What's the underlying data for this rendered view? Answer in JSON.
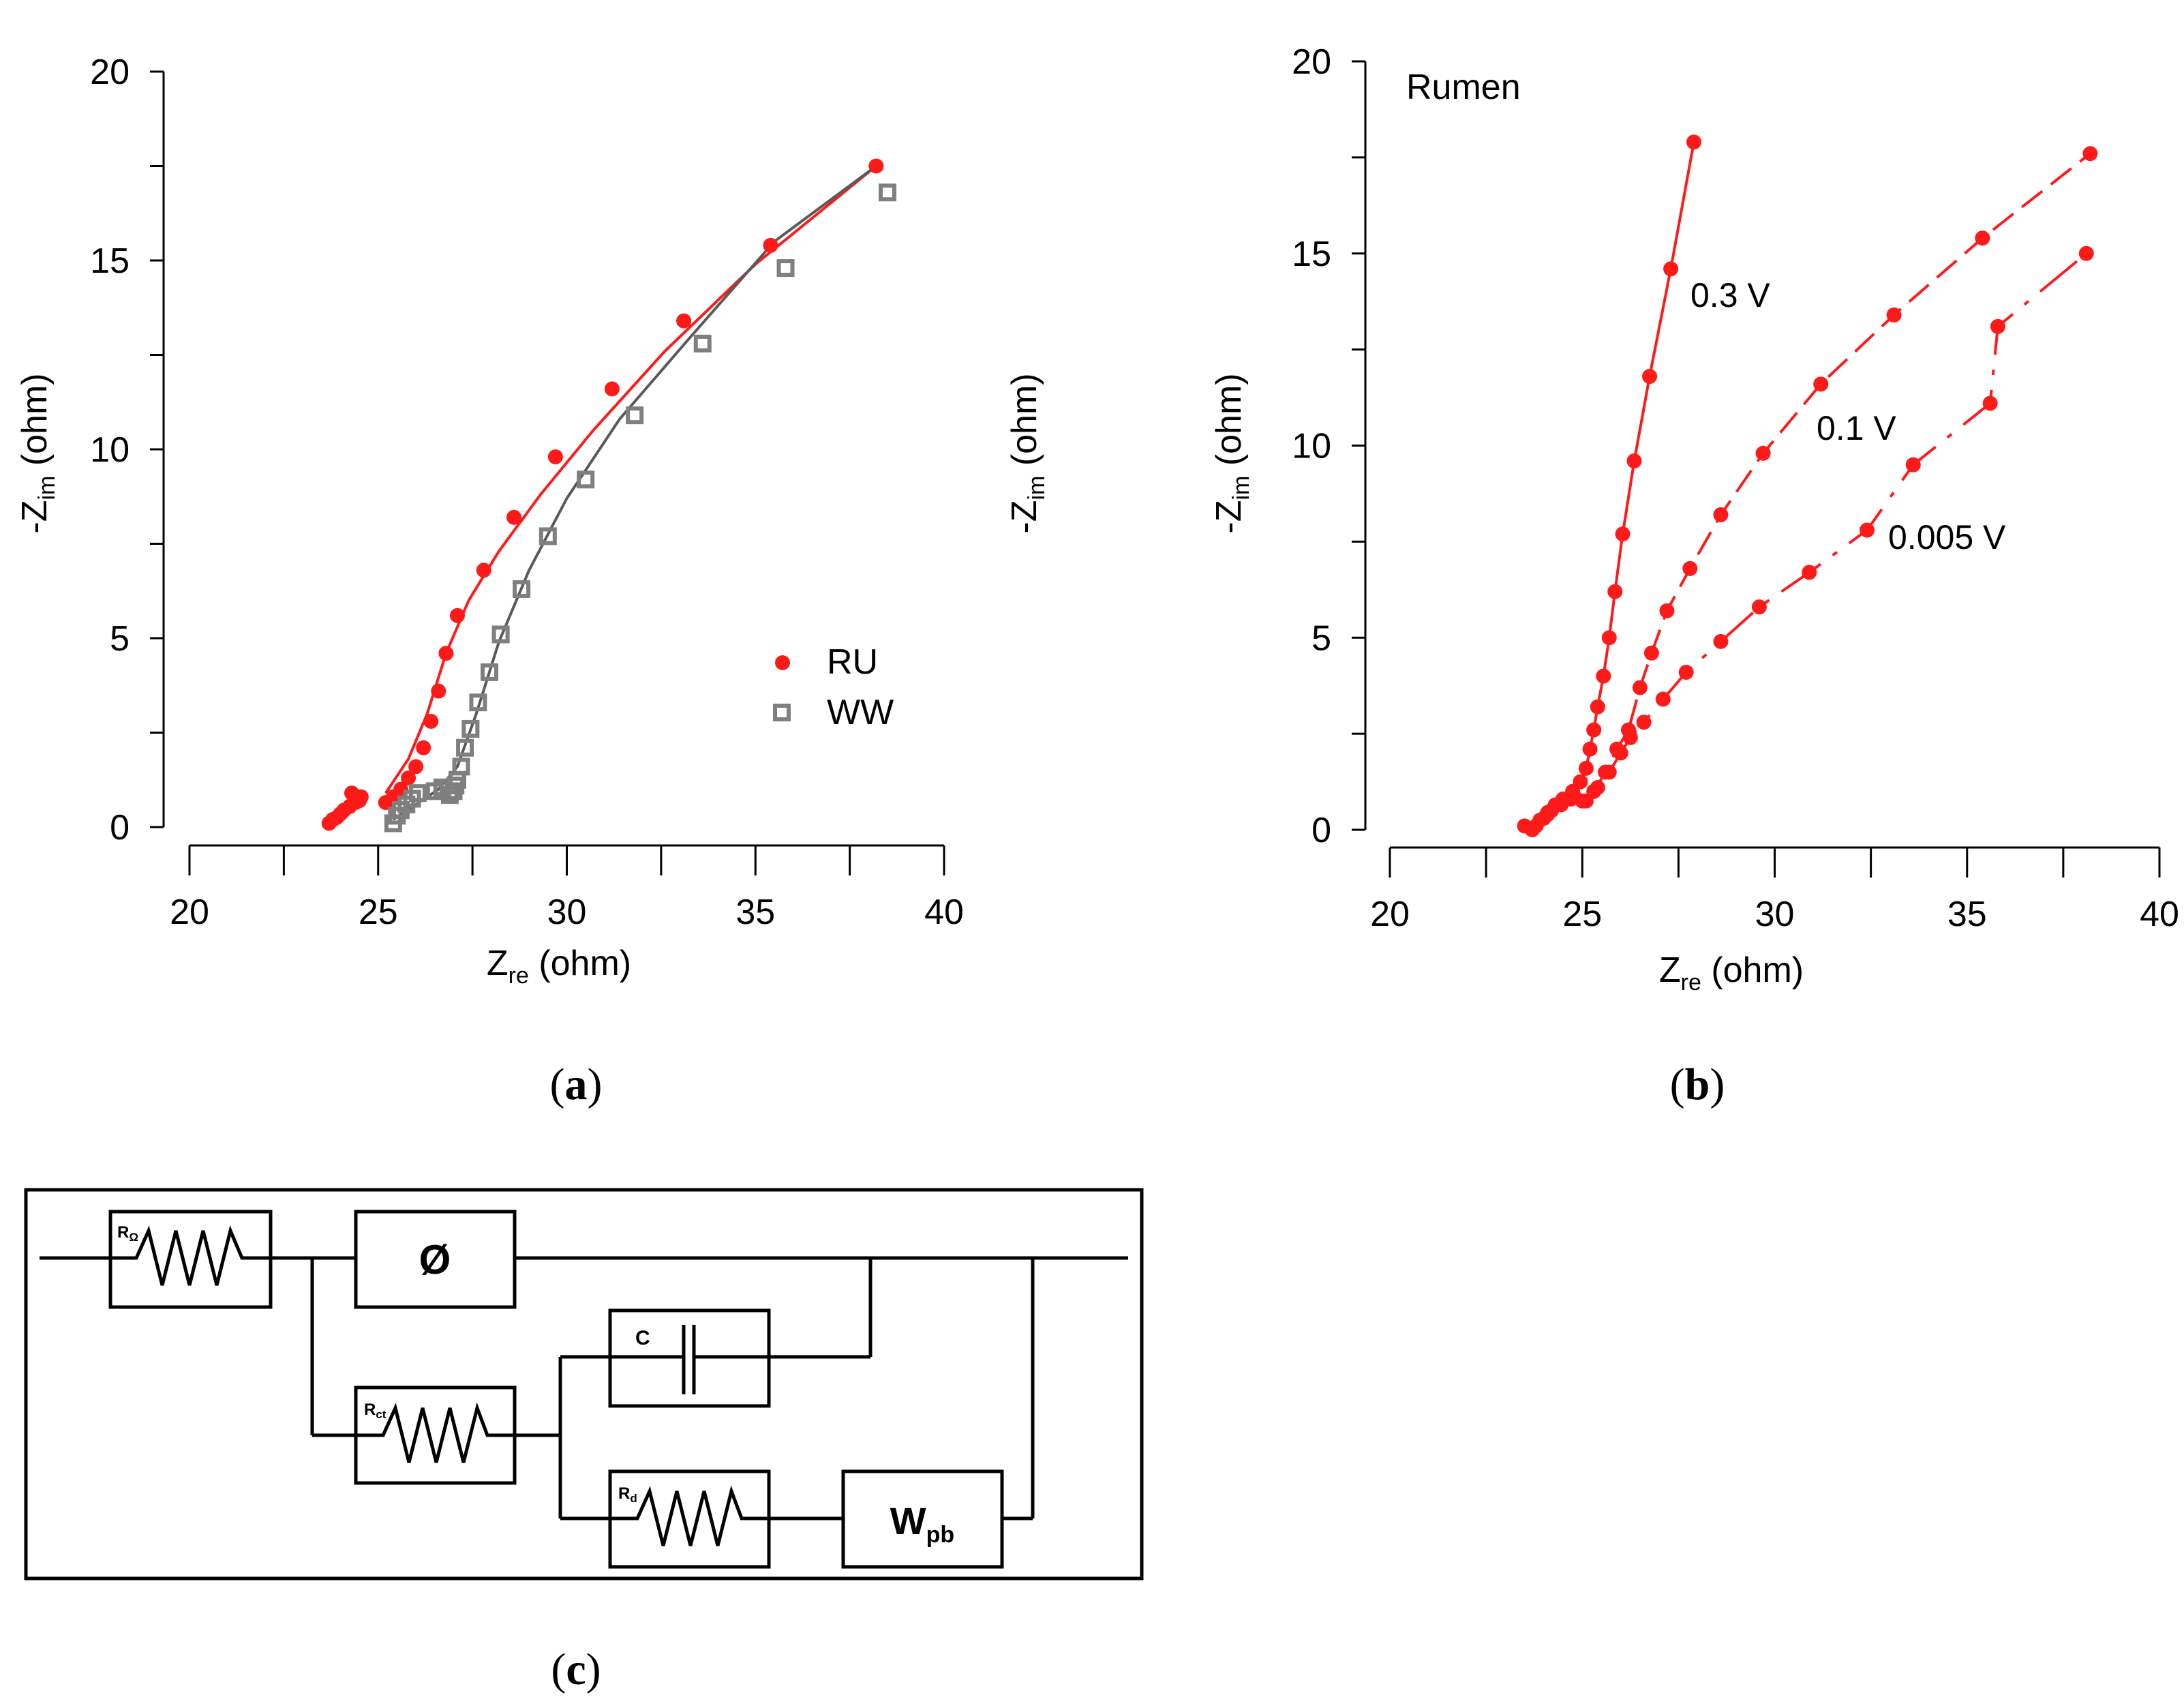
{
  "chart_data": [
    {
      "panel": "a",
      "type": "scatter",
      "title": "",
      "xlabel_main": "Z",
      "xlabel_sub": "re",
      "xlabel_unit": " (ohm)",
      "ylabel_main": "-Z",
      "ylabel_sub": "im",
      "ylabel_unit": " (ohm)",
      "xlim": [
        20,
        40
      ],
      "ylim": [
        0,
        20
      ],
      "xticks": [
        20,
        25,
        30,
        35,
        40
      ],
      "yticks": [
        0,
        5,
        10,
        15,
        20
      ],
      "legend_position": "right-middle",
      "series": [
        {
          "name": "RU",
          "marker": "filled-circle",
          "color": "#ff1a1a",
          "points": [
            [
              23.7,
              0.1
            ],
            [
              23.8,
              0.2
            ],
            [
              23.9,
              0.25
            ],
            [
              24.0,
              0.35
            ],
            [
              24.1,
              0.45
            ],
            [
              24.25,
              0.55
            ],
            [
              24.4,
              0.65
            ],
            [
              24.5,
              0.7
            ],
            [
              24.3,
              0.9
            ],
            [
              24.55,
              0.8
            ],
            [
              25.2,
              0.65
            ],
            [
              25.4,
              0.8
            ],
            [
              25.6,
              1.0
            ],
            [
              25.8,
              1.3
            ],
            [
              26.0,
              1.6
            ],
            [
              26.2,
              2.1
            ],
            [
              26.4,
              2.8
            ],
            [
              26.6,
              3.6
            ],
            [
              26.8,
              4.6
            ],
            [
              27.1,
              5.6
            ],
            [
              27.8,
              6.8
            ],
            [
              28.6,
              8.2
            ],
            [
              29.7,
              9.8
            ],
            [
              31.2,
              11.6
            ],
            [
              33.1,
              13.4
            ],
            [
              35.4,
              15.4
            ],
            [
              38.2,
              17.5
            ]
          ]
        },
        {
          "name": "WW",
          "marker": "open-square",
          "color": "#7f7f7f",
          "points": [
            [
              25.4,
              0.1
            ],
            [
              25.5,
              0.3
            ],
            [
              25.6,
              0.45
            ],
            [
              25.75,
              0.6
            ],
            [
              25.9,
              0.75
            ],
            [
              26.05,
              0.9
            ],
            [
              26.5,
              0.95
            ],
            [
              26.7,
              1.05
            ],
            [
              26.9,
              0.85
            ],
            [
              27.0,
              0.95
            ],
            [
              27.05,
              1.1
            ],
            [
              27.1,
              1.25
            ],
            [
              27.2,
              1.6
            ],
            [
              27.3,
              2.1
            ],
            [
              27.45,
              2.6
            ],
            [
              27.65,
              3.3
            ],
            [
              27.95,
              4.1
            ],
            [
              28.25,
              5.1
            ],
            [
              28.8,
              6.3
            ],
            [
              29.5,
              7.7
            ],
            [
              30.5,
              9.2
            ],
            [
              31.8,
              10.9
            ],
            [
              33.6,
              12.8
            ],
            [
              35.8,
              14.8
            ],
            [
              38.5,
              16.8
            ]
          ]
        },
        {
          "name": "RU fit",
          "marker": "line",
          "color": "#ff1a1a",
          "points": [
            [
              25.2,
              0.9
            ],
            [
              25.8,
              1.8
            ],
            [
              26.3,
              3.0
            ],
            [
              26.8,
              4.6
            ],
            [
              27.4,
              6.0
            ],
            [
              28.2,
              7.3
            ],
            [
              29.3,
              8.8
            ],
            [
              30.7,
              10.5
            ],
            [
              32.6,
              12.6
            ],
            [
              35.0,
              14.9
            ],
            [
              38.2,
              17.5
            ]
          ]
        },
        {
          "name": "WW fit",
          "marker": "line",
          "color": "#595959",
          "points": [
            [
              25.4,
              0.2
            ],
            [
              26.0,
              0.6
            ],
            [
              26.6,
              1.0
            ],
            [
              27.1,
              1.6
            ],
            [
              27.6,
              3.0
            ],
            [
              28.2,
              4.9
            ],
            [
              29.0,
              6.8
            ],
            [
              30.0,
              8.7
            ],
            [
              31.4,
              10.8
            ],
            [
              33.3,
              13.0
            ],
            [
              35.5,
              15.5
            ],
            [
              38.2,
              17.5
            ]
          ]
        }
      ]
    },
    {
      "panel": "b",
      "type": "line",
      "title": "Rumen",
      "xlabel_main": "Z",
      "xlabel_sub": "re",
      "xlabel_unit": " (ohm)",
      "ylabel_main": "-Z",
      "ylabel_sub": "im",
      "ylabel_unit": " (ohm)",
      "xlim": [
        20,
        40
      ],
      "ylim": [
        0,
        20
      ],
      "xticks": [
        20,
        25,
        30,
        35,
        40
      ],
      "yticks": [
        0,
        5,
        10,
        15,
        20
      ],
      "series": [
        {
          "name": "0.3 V",
          "style": "solid",
          "color": "#ff1a1a",
          "points": [
            [
              23.5,
              0.1
            ],
            [
              23.7,
              0.0
            ],
            [
              23.9,
              0.25
            ],
            [
              24.1,
              0.45
            ],
            [
              24.3,
              0.65
            ],
            [
              24.5,
              0.8
            ],
            [
              24.75,
              1.0
            ],
            [
              24.95,
              1.25
            ],
            [
              25.1,
              1.6
            ],
            [
              25.2,
              2.1
            ],
            [
              25.3,
              2.6
            ],
            [
              25.4,
              3.2
            ],
            [
              25.55,
              4.0
            ],
            [
              25.7,
              5.0
            ],
            [
              25.85,
              6.2
            ],
            [
              26.05,
              7.7
            ],
            [
              26.35,
              9.6
            ],
            [
              26.75,
              11.8
            ],
            [
              27.3,
              14.6
            ],
            [
              27.9,
              17.9
            ]
          ]
        },
        {
          "name": "0.1 V",
          "style": "dashed",
          "color": "#ff1a1a",
          "points": [
            [
              23.8,
              0.1
            ],
            [
              24.0,
              0.3
            ],
            [
              24.2,
              0.5
            ],
            [
              24.45,
              0.7
            ],
            [
              24.7,
              0.8
            ],
            [
              25.0,
              0.75
            ],
            [
              25.3,
              1.0
            ],
            [
              25.6,
              1.5
            ],
            [
              25.9,
              2.1
            ],
            [
              26.2,
              2.6
            ],
            [
              26.5,
              3.7
            ],
            [
              26.8,
              4.6
            ],
            [
              27.2,
              5.7
            ],
            [
              27.8,
              6.8
            ],
            [
              28.6,
              8.2
            ],
            [
              29.7,
              9.8
            ],
            [
              31.2,
              11.6
            ],
            [
              33.1,
              13.4
            ],
            [
              35.4,
              15.4
            ],
            [
              38.2,
              17.6
            ]
          ]
        },
        {
          "name": "0.005 V",
          "style": "dash-dot",
          "color": "#ff1a1a",
          "points": [
            [
              24.1,
              0.4
            ],
            [
              24.45,
              0.65
            ],
            [
              24.8,
              0.85
            ],
            [
              25.1,
              0.75
            ],
            [
              25.4,
              1.1
            ],
            [
              25.7,
              1.5
            ],
            [
              26.0,
              2.0
            ],
            [
              26.25,
              2.4
            ],
            [
              26.6,
              2.8
            ],
            [
              27.1,
              3.4
            ],
            [
              27.7,
              4.1
            ],
            [
              28.6,
              4.9
            ],
            [
              29.6,
              5.8
            ],
            [
              30.9,
              6.7
            ],
            [
              32.4,
              7.8
            ],
            [
              33.6,
              9.5
            ],
            [
              35.6,
              11.1
            ],
            [
              35.8,
              13.1
            ],
            [
              38.1,
              15.0
            ]
          ]
        }
      ],
      "annotations": [
        "0.3 V",
        "0.1 V",
        "0.005 V"
      ]
    }
  ],
  "panels": {
    "a_label": "a",
    "b_label": "b",
    "c_label": "c"
  },
  "circuit": {
    "r_omega": {
      "main": "R",
      "sub": "Ω"
    },
    "phi": "Ø",
    "capacitor": "C",
    "r_ct": {
      "main": "R",
      "sub": "ct"
    },
    "r_d": {
      "main": "R",
      "sub": "d"
    },
    "w_pb": {
      "main": "W",
      "sub": "pb"
    }
  }
}
